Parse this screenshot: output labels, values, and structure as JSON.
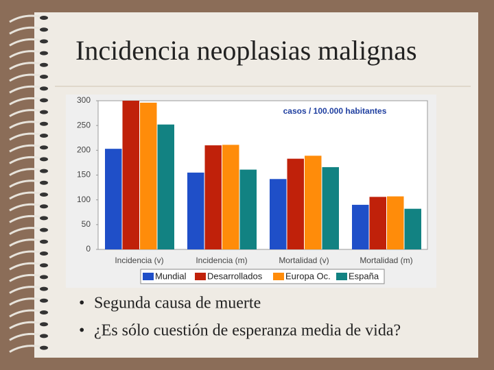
{
  "title": "Incidencia neoplasias malignas",
  "bullets": [
    "Segunda causa de muerte",
    "¿Es sólo cuestión de esperanza media de vida?"
  ],
  "chart_data": {
    "type": "bar",
    "annotation": "casos / 100.000 habitantes",
    "categories": [
      "Incidencia (v)",
      "Incidencia (m)",
      "Mortalidad (v)",
      "Mortalidad (m)"
    ],
    "series": [
      {
        "name": "Mundial",
        "color": "#1f4fc8",
        "values": [
          203,
          155,
          142,
          90
        ]
      },
      {
        "name": "Desarrollados",
        "color": "#c0210a",
        "values": [
          300,
          210,
          183,
          106
        ]
      },
      {
        "name": "Europa Oc.",
        "color": "#ff8c0a",
        "values": [
          296,
          211,
          189,
          107
        ]
      },
      {
        "name": "España",
        "color": "#128282",
        "values": [
          252,
          161,
          166,
          82
        ]
      }
    ],
    "ylim": [
      0,
      300
    ],
    "yticks": [
      0,
      50,
      100,
      150,
      200,
      250,
      300
    ],
    "grid": false,
    "legend": "bottom"
  }
}
